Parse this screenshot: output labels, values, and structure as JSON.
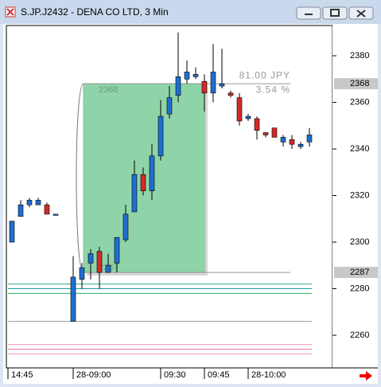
{
  "window": {
    "title": "S.JP.J2432 - DENA CO LTD, 3 Min"
  },
  "chart_data": {
    "type": "candlestick",
    "categories": [
      "14:45",
      null,
      null,
      null,
      null,
      null,
      null,
      "28-09:00",
      null,
      null,
      null,
      null,
      null,
      null,
      null,
      null,
      null,
      "09:30",
      null,
      null,
      null,
      null,
      "09:45",
      null,
      null,
      null,
      null,
      "28-10:00",
      null,
      null,
      null,
      null,
      null,
      null,
      null
    ],
    "open": [
      2300,
      2311,
      2316,
      2316,
      2316,
      2312,
      null,
      2266,
      2284,
      2291,
      2296,
      2287,
      2291,
      2301,
      2313,
      2329,
      2322,
      2337,
      2355,
      2363,
      2370,
      2371,
      2369,
      2364,
      2367,
      2364,
      2362,
      2353,
      2353,
      2347,
      2349,
      2343,
      2344,
      2341,
      2343
    ],
    "high": [
      2309,
      2318,
      2319,
      2319,
      2317,
      2312,
      null,
      2294,
      2291,
      2297,
      2298,
      2295,
      2302,
      2316,
      2335,
      2332,
      2342,
      2361,
      2367,
      2390,
      2378,
      2375,
      2372,
      2385,
      2383,
      2365,
      2364,
      2355,
      2354,
      2347,
      2349,
      2346,
      2346,
      2343,
      2349
    ],
    "low": [
      2300,
      2311,
      2315,
      2316,
      2312,
      2312,
      null,
      2266,
      2280,
      2284,
      2280,
      2287,
      2287,
      2300,
      2313,
      2320,
      2318,
      2335,
      2353,
      2360,
      2368,
      2370,
      2356,
      2360,
      2366,
      2362,
      2350,
      2352,
      2344,
      2345,
      2345,
      2341,
      2340,
      2340,
      2341
    ],
    "close": [
      2309,
      2316,
      2318,
      2318,
      2312,
      2312,
      null,
      2285,
      2289,
      2295,
      2287,
      2290,
      2302,
      2312,
      2329,
      2322,
      2337,
      2354,
      2362,
      2371,
      2373,
      2372,
      2364,
      2373,
      2368,
      2363,
      2352,
      2354,
      2348,
      2346,
      2345,
      2345,
      2342,
      2342,
      2346
    ],
    "up_color": "#1e6fd2",
    "down_color": "#d42a2a",
    "ylim": [
      2246,
      2393
    ],
    "yticks": [
      2260,
      2280,
      2300,
      2320,
      2340,
      2360,
      2380
    ],
    "measure": {
      "start": 2368,
      "end": 2287,
      "change": "81.00 JPY",
      "percent": "3.54 %",
      "color": "#8fd4a8"
    },
    "levels": [
      {
        "value": 2282,
        "color": "#2fb070"
      },
      {
        "value": 2280,
        "color": "#1aa0a0"
      },
      {
        "value": 2278,
        "color": "#2fb070"
      },
      {
        "value": 2266,
        "color": "#a0a0a0"
      },
      {
        "value": 2256,
        "color": "#f090c0"
      },
      {
        "value": 2254,
        "color": "#e070b0"
      },
      {
        "value": 2252,
        "color": "#f0a0c8"
      }
    ]
  }
}
